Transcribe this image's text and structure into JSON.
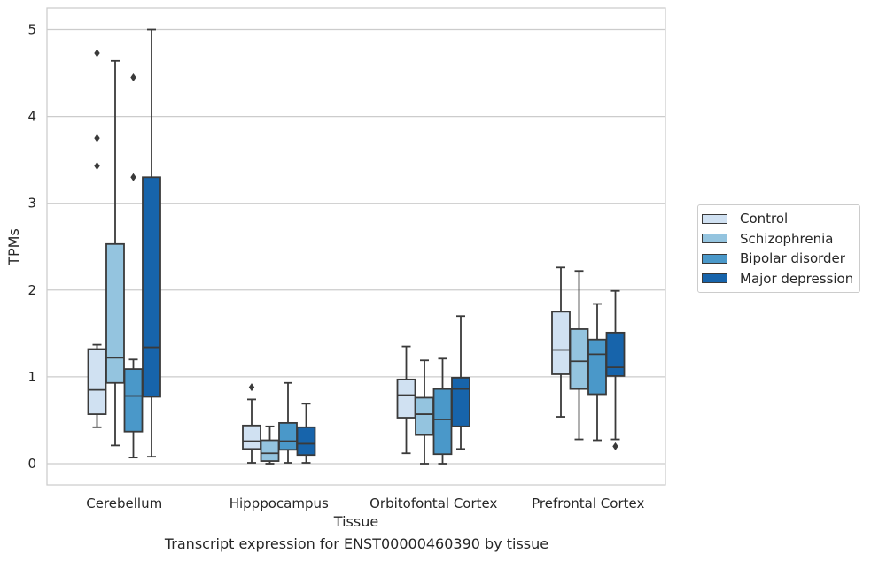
{
  "chart_data": {
    "type": "box",
    "title": "",
    "caption": "Transcript expression for ENST00000460390 by tissue",
    "xlabel": "Tissue",
    "ylabel": "TPMs",
    "ylim": [
      -0.25,
      5.25
    ],
    "yticks": [
      0,
      1,
      2,
      3,
      4,
      5
    ],
    "grid": true,
    "legend_position": "right",
    "categories": [
      "Cerebellum",
      "Hipppocampus",
      "Orbitofontal Cortex",
      "Prefrontal Cortex"
    ],
    "series": [
      {
        "name": "Control",
        "color": "#d0e1f2",
        "boxes": [
          {
            "whisker_low": 0.42,
            "q1": 0.57,
            "median": 0.85,
            "q3": 1.32,
            "whisker_high": 1.37,
            "outliers": [
              3.43,
              3.75,
              4.73
            ]
          },
          {
            "whisker_low": 0.01,
            "q1": 0.17,
            "median": 0.26,
            "q3": 0.44,
            "whisker_high": 0.74,
            "outliers": [
              0.88
            ]
          },
          {
            "whisker_low": 0.12,
            "q1": 0.53,
            "median": 0.79,
            "q3": 0.97,
            "whisker_high": 1.35,
            "outliers": []
          },
          {
            "whisker_low": 0.54,
            "q1": 1.03,
            "median": 1.31,
            "q3": 1.75,
            "whisker_high": 2.26,
            "outliers": []
          }
        ]
      },
      {
        "name": "Schizophrenia",
        "color": "#94c4df",
        "boxes": [
          {
            "whisker_low": 0.21,
            "q1": 0.93,
            "median": 1.22,
            "q3": 2.53,
            "whisker_high": 4.64,
            "outliers": []
          },
          {
            "whisker_low": 0.0,
            "q1": 0.03,
            "median": 0.12,
            "q3": 0.27,
            "whisker_high": 0.43,
            "outliers": []
          },
          {
            "whisker_low": 0.0,
            "q1": 0.33,
            "median": 0.57,
            "q3": 0.76,
            "whisker_high": 1.19,
            "outliers": []
          },
          {
            "whisker_low": 0.28,
            "q1": 0.86,
            "median": 1.18,
            "q3": 1.55,
            "whisker_high": 2.22,
            "outliers": []
          }
        ]
      },
      {
        "name": "Bipolar disorder",
        "color": "#4a98c9",
        "boxes": [
          {
            "whisker_low": 0.07,
            "q1": 0.37,
            "median": 0.78,
            "q3": 1.09,
            "whisker_high": 1.2,
            "outliers": [
              3.3,
              4.45
            ]
          },
          {
            "whisker_low": 0.01,
            "q1": 0.16,
            "median": 0.26,
            "q3": 0.47,
            "whisker_high": 0.93,
            "outliers": []
          },
          {
            "whisker_low": 0.0,
            "q1": 0.11,
            "median": 0.51,
            "q3": 0.86,
            "whisker_high": 1.21,
            "outliers": []
          },
          {
            "whisker_low": 0.27,
            "q1": 0.8,
            "median": 1.26,
            "q3": 1.43,
            "whisker_high": 1.84,
            "outliers": []
          }
        ]
      },
      {
        "name": "Major depression",
        "color": "#1764ab",
        "boxes": [
          {
            "whisker_low": 0.08,
            "q1": 0.77,
            "median": 1.34,
            "q3": 3.3,
            "whisker_high": 5.0,
            "outliers": []
          },
          {
            "whisker_low": 0.01,
            "q1": 0.1,
            "median": 0.23,
            "q3": 0.42,
            "whisker_high": 0.69,
            "outliers": []
          },
          {
            "whisker_low": 0.17,
            "q1": 0.43,
            "median": 0.86,
            "q3": 0.99,
            "whisker_high": 1.7,
            "outliers": []
          },
          {
            "whisker_low": 0.28,
            "q1": 1.01,
            "median": 1.11,
            "q3": 1.51,
            "whisker_high": 1.99,
            "outliers": [
              0.2
            ]
          }
        ]
      }
    ]
  }
}
